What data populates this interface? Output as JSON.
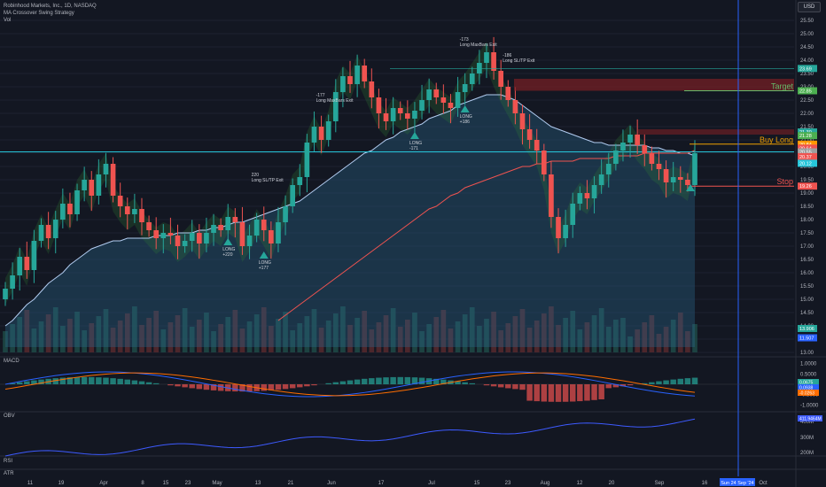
{
  "legend": {
    "symbol": "Robinhood Markets, Inc., 1D, NASDAQ",
    "strategy": "MA Crossover Swing Strategy",
    "vol": "Vol"
  },
  "currency": "USD",
  "colors": {
    "background": "#131722",
    "up": "#26a69a",
    "down": "#ef5350",
    "ma_short_fill": "#2c6b8f",
    "ma_long": "#ef5350",
    "ma_mid": "#b2ccf0",
    "target": "#f0a000",
    "stop": "#ef5350",
    "cursor": "#2962ff",
    "macd": "#2962ff",
    "signal": "#ff6d00",
    "obv": "#3d5afe"
  },
  "chart_data": [
    {
      "type": "candlestick",
      "title": "Robinhood Markets, Inc., 1D, NASDAQ",
      "y_ticks": [
        "25.50",
        "25.00",
        "24.50",
        "24.00",
        "23.50",
        "23.00",
        "22.50",
        "22.00",
        "21.50",
        "21.00",
        "20.50",
        "20.00",
        "19.50",
        "19.00",
        "18.50",
        "18.00",
        "17.50",
        "17.00",
        "16.50",
        "16.00",
        "15.50",
        "15.00",
        "14.50",
        "14.00",
        "13.50",
        "13.00"
      ],
      "ylim": [
        13.0,
        25.8
      ],
      "x_labels": [
        "11",
        "19",
        "Apr",
        "8",
        "15",
        "23",
        "May",
        "13",
        "21",
        "Jun",
        "17",
        "Jul",
        "15",
        "23",
        "Aug",
        "12",
        "20",
        "Sep",
        "16",
        "Oct"
      ],
      "close": [
        15.4,
        15.9,
        16.6,
        16.1,
        17.2,
        17.8,
        17.3,
        18.0,
        18.6,
        18.2,
        19.1,
        19.5,
        18.9,
        19.7,
        20.1,
        18.9,
        18.5,
        18.2,
        18.4,
        17.9,
        17.6,
        17.3,
        17.5,
        17.4,
        17.0,
        17.2,
        17.5,
        17.1,
        17.5,
        17.8,
        17.6,
        18.1,
        17.9,
        17.0,
        17.4,
        18.0,
        17.6,
        17.1,
        17.9,
        18.5,
        19.3,
        19.6,
        20.9,
        21.5,
        21.0,
        21.7,
        22.8,
        23.4,
        23.1,
        23.8,
        23.2,
        22.6,
        22.0,
        21.7,
        22.2,
        22.0,
        21.8,
        22.1,
        22.5,
        22.9,
        22.6,
        22.4,
        22.2,
        22.8,
        23.1,
        23.5,
        23.9,
        24.3,
        23.6,
        23.0,
        22.5,
        22.0,
        21.4,
        21.0,
        20.6,
        19.7,
        18.1,
        17.3,
        17.8,
        18.6,
        19.0,
        18.8,
        19.3,
        19.7,
        20.1,
        20.6,
        20.9,
        21.2,
        20.8,
        20.5,
        20.1,
        19.9,
        19.4,
        19.6,
        19.5,
        19.3,
        20.5
      ],
      "open": [
        15.0,
        15.4,
        15.9,
        16.6,
        16.1,
        17.2,
        17.8,
        17.3,
        18.0,
        18.6,
        18.2,
        19.1,
        19.5,
        18.9,
        19.7,
        20.1,
        18.9,
        18.5,
        18.2,
        18.4,
        17.9,
        17.6,
        17.3,
        17.5,
        17.4,
        17.0,
        17.2,
        17.5,
        17.1,
        17.5,
        17.8,
        17.6,
        18.1,
        17.9,
        17.0,
        17.4,
        18.0,
        17.6,
        17.1,
        17.9,
        18.5,
        19.3,
        19.6,
        20.9,
        21.5,
        21.0,
        21.7,
        22.8,
        23.4,
        23.1,
        23.8,
        23.2,
        22.6,
        22.0,
        21.7,
        22.2,
        22.0,
        21.8,
        22.1,
        22.5,
        22.9,
        22.6,
        22.4,
        22.2,
        22.8,
        23.1,
        23.5,
        23.9,
        24.3,
        23.6,
        23.0,
        22.5,
        22.0,
        21.4,
        21.0,
        20.6,
        19.7,
        18.1,
        17.3,
        17.8,
        18.6,
        19.0,
        18.8,
        19.3,
        19.7,
        20.1,
        20.6,
        20.9,
        21.2,
        20.8,
        20.5,
        20.1,
        19.9,
        19.4,
        19.6,
        19.5,
        19.3
      ],
      "ma_mid": [
        14.0,
        14.2,
        14.5,
        14.8,
        15.0,
        15.3,
        15.6,
        15.8,
        16.0,
        16.3,
        16.5,
        16.7,
        16.9,
        17.0,
        17.1,
        17.2,
        17.2,
        17.3,
        17.3,
        17.3,
        17.3,
        17.4,
        17.4,
        17.4,
        17.5,
        17.5,
        17.5,
        17.6,
        17.6,
        17.7,
        17.7,
        17.8,
        17.9,
        17.9,
        18.0,
        18.1,
        18.2,
        18.3,
        18.4,
        18.5,
        18.6,
        18.7,
        18.9,
        19.1,
        19.3,
        19.5,
        19.7,
        19.9,
        20.1,
        20.3,
        20.5,
        20.6,
        20.8,
        21.0,
        21.1,
        21.3,
        21.4,
        21.5,
        21.6,
        21.8,
        21.9,
        22.0,
        22.1,
        22.3,
        22.4,
        22.5,
        22.6,
        22.7,
        22.7,
        22.7,
        22.6,
        22.5,
        22.3,
        22.1,
        21.9,
        21.7,
        21.5,
        21.4,
        21.3,
        21.2,
        21.1,
        21.0,
        20.9,
        20.9,
        20.8,
        20.8,
        20.8,
        20.8,
        20.8,
        20.8,
        20.7,
        20.7,
        20.6,
        20.6,
        20.5,
        20.5,
        20.4
      ],
      "ma_long": [
        null,
        null,
        null,
        null,
        null,
        null,
        null,
        null,
        null,
        null,
        null,
        null,
        null,
        null,
        null,
        null,
        null,
        null,
        null,
        null,
        null,
        null,
        null,
        null,
        null,
        null,
        null,
        null,
        null,
        null,
        null,
        null,
        null,
        null,
        null,
        null,
        null,
        null,
        14.2,
        14.4,
        14.6,
        14.8,
        15.0,
        15.2,
        15.4,
        15.6,
        15.8,
        16.0,
        16.2,
        16.4,
        16.6,
        16.8,
        17.0,
        17.2,
        17.4,
        17.6,
        17.8,
        18.0,
        18.2,
        18.4,
        18.5,
        18.7,
        18.9,
        19.0,
        19.2,
        19.3,
        19.4,
        19.5,
        19.6,
        19.7,
        19.8,
        19.9,
        20.0,
        20.0,
        20.1,
        20.1,
        20.2,
        20.2,
        20.2,
        20.2,
        20.3,
        20.3,
        20.3,
        20.3,
        20.3,
        20.4,
        20.4,
        20.4,
        20.4,
        20.5,
        20.5,
        20.5,
        20.5,
        20.5,
        20.5,
        20.5,
        20.6
      ],
      "price_labels": [
        {
          "label": "Target",
          "value": 22.85
        },
        {
          "label": "Buy Long",
          "value": 20.84
        },
        {
          "label": "Stop",
          "value": 19.26
        }
      ],
      "axis_tags": [
        "23.69",
        "22.85",
        "21.30",
        "21.28",
        "20.84",
        "20.64",
        "20.55",
        "20.37",
        "20.12",
        "19.26",
        "13.906",
        "11.507"
      ],
      "trade_markers": [
        {
          "label": "LONG",
          "sub": "+220"
        },
        {
          "label": "Long SL/TP Exit",
          "sub": "220"
        },
        {
          "label": "LONG",
          "sub": "+177"
        },
        {
          "label": "Long MaxBars Exit",
          "sub": "-177"
        },
        {
          "label": "LONG",
          "sub": "-171"
        },
        {
          "label": "Long MaxBars Exit",
          "sub": "-173"
        },
        {
          "label": "LONG",
          "sub": "+186"
        },
        {
          "label": "Long SL/TP Exit",
          "sub": "-186"
        }
      ]
    },
    {
      "type": "bar",
      "title": "MACD",
      "y_ticks": [
        "1.0000",
        "0.5000",
        "0.0000",
        "-0.5000",
        "-1.0000"
      ],
      "ylim": [
        -1.2,
        1.2
      ],
      "tags": [
        "0.0675",
        "0.0938",
        "-0.0263"
      ]
    },
    {
      "type": "line",
      "title": "OBV",
      "y_ticks": [
        "400M",
        "300M",
        "200M"
      ],
      "tags": [
        "411.9464M"
      ]
    },
    {
      "type": "line",
      "title": "RSI"
    },
    {
      "type": "line",
      "title": "ATR"
    }
  ],
  "date_tag": "Sun 24 Sep '24",
  "axis_month_label": "Oct"
}
